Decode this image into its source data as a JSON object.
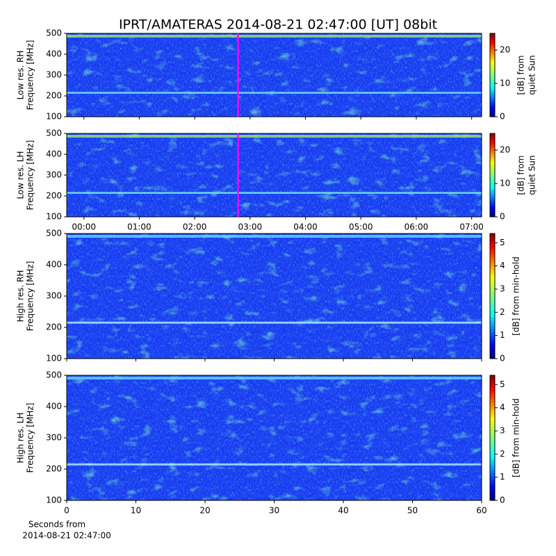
{
  "chart_data": [
    {
      "type": "heatmap",
      "title": "IPRT/AMATERAS 2014-08-21 02:47:00 [UT]   08bit",
      "ylabel": [
        "Low res. RH",
        "Frequency [MHz]"
      ],
      "ylim": [
        100,
        500
      ],
      "yticks": [
        100,
        200,
        300,
        400,
        500
      ],
      "xlim": [
        -0.31,
        7.18
      ],
      "time_marker": 2.783,
      "marker_color": "#ff00ff",
      "colorbar": {
        "label": [
          "[dB] from",
          "quiet Sun"
        ],
        "lim": [
          0,
          25
        ],
        "ticks": [
          0,
          10,
          20
        ]
      }
    },
    {
      "type": "heatmap",
      "ylabel": [
        "Low res. LH",
        "Frequency [MHz]"
      ],
      "ylim": [
        100,
        500
      ],
      "yticks": [
        100,
        200,
        300,
        400,
        500
      ],
      "xlim": [
        -0.31,
        7.18
      ],
      "time_marker": 2.783,
      "marker_color": "#ff00ff",
      "xticks": [
        {
          "value": 0,
          "label": "00:00"
        },
        {
          "value": 1,
          "label": "01:00"
        },
        {
          "value": 2,
          "label": "02:00"
        },
        {
          "value": 3,
          "label": "03:00"
        },
        {
          "value": 4,
          "label": "04:00"
        },
        {
          "value": 5,
          "label": "05:00"
        },
        {
          "value": 6,
          "label": "06:00"
        },
        {
          "value": 7,
          "label": "07:00"
        }
      ],
      "colorbar": {
        "label": [
          "[dB] from",
          "quiet Sun"
        ],
        "lim": [
          0,
          25
        ],
        "ticks": [
          0,
          10,
          20
        ]
      }
    },
    {
      "type": "heatmap",
      "ylabel": [
        "High res. RH",
        "Frequency [MHz]"
      ],
      "ylim": [
        100,
        500
      ],
      "yticks": [
        100,
        200,
        300,
        400,
        500
      ],
      "xlim": [
        0,
        60
      ],
      "colorbar": {
        "label": [
          "[dB] from min-hold"
        ],
        "lim": [
          0,
          5.4
        ],
        "ticks": [
          0,
          1,
          2,
          3,
          4,
          5
        ]
      }
    },
    {
      "type": "heatmap",
      "ylabel": [
        "High res. LH",
        "Frequency [MHz]"
      ],
      "ylim": [
        100,
        500
      ],
      "yticks": [
        100,
        200,
        300,
        400,
        500
      ],
      "xlim": [
        0,
        60
      ],
      "xticks": [
        0,
        10,
        20,
        30,
        40,
        50,
        60
      ],
      "xlabel": [
        "Seconds from",
        "2014-08-21 02:47:00"
      ],
      "colorbar": {
        "label": [
          "[dB] from min-hold"
        ],
        "lim": [
          0,
          5.4
        ],
        "ticks": [
          0,
          1,
          2,
          3,
          4,
          5
        ]
      }
    }
  ]
}
